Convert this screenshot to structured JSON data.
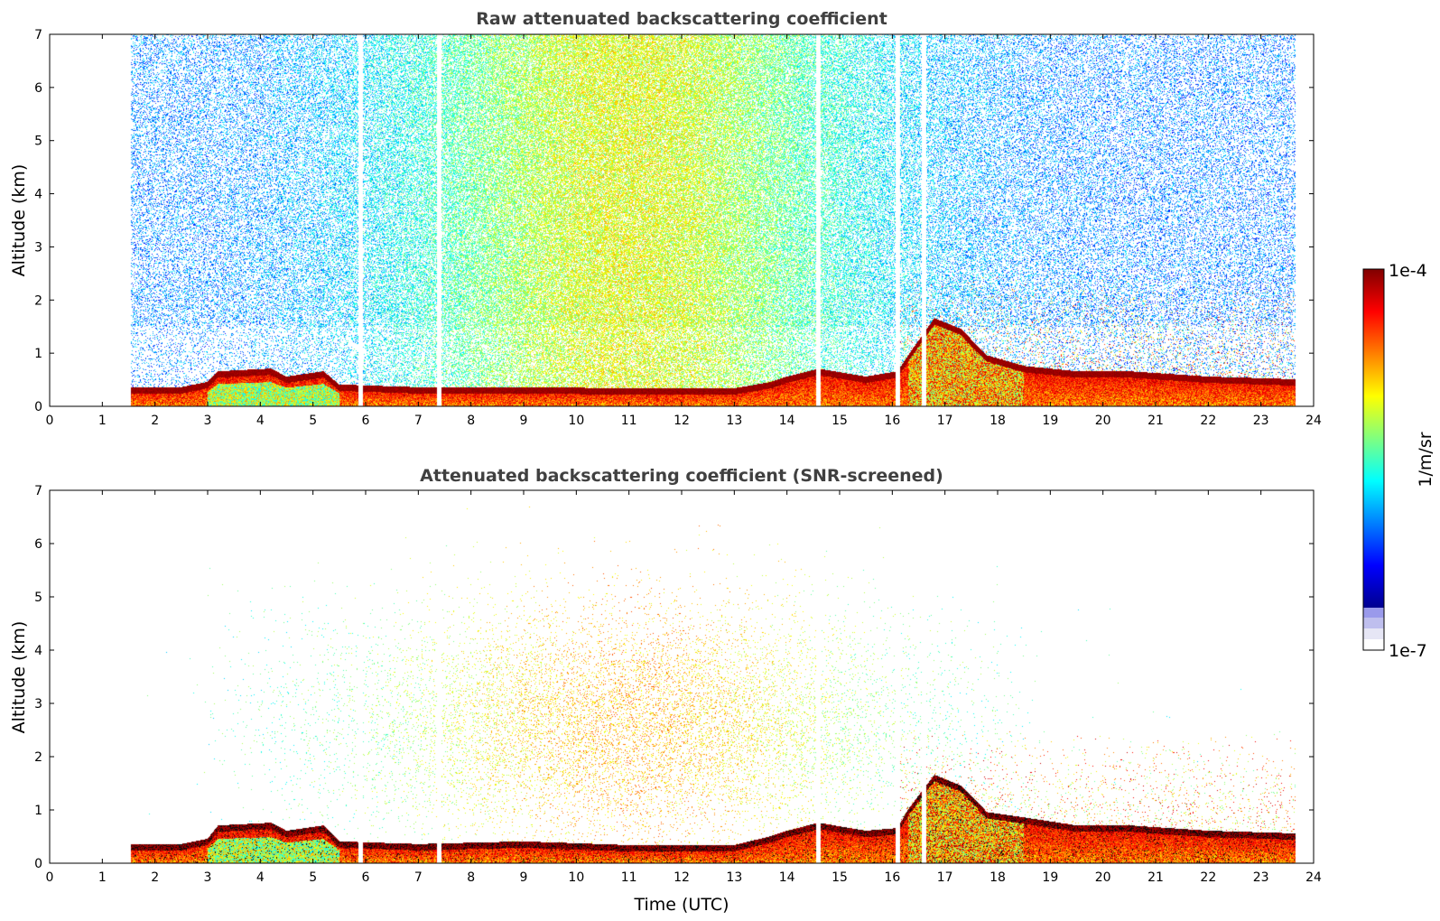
{
  "chart_data": [
    {
      "type": "heatmap",
      "title": "Raw attenuated backscattering coefficient",
      "xlabel": "",
      "ylabel": "Altitude (km)",
      "xlim": [
        0,
        24
      ],
      "ylim": [
        0,
        7
      ],
      "xticks": [
        "0",
        "1",
        "2",
        "3",
        "4",
        "5",
        "6",
        "7",
        "8",
        "9",
        "10",
        "11",
        "12",
        "13",
        "14",
        "15",
        "16",
        "17",
        "18",
        "19",
        "20",
        "21",
        "22",
        "23",
        "24"
      ],
      "yticks": [
        "0",
        "1",
        "2",
        "3",
        "4",
        "5",
        "6",
        "7"
      ],
      "data_start_hour": 1.55,
      "data_end_hour": 23.65,
      "gap_hours": [
        5.9,
        7.4,
        14.6,
        16.1,
        16.6
      ],
      "boundary_layer_top_km": [
        [
          1.55,
          0.3
        ],
        [
          2.5,
          0.3
        ],
        [
          3.0,
          0.4
        ],
        [
          3.2,
          0.6
        ],
        [
          4.2,
          0.65
        ],
        [
          4.5,
          0.5
        ],
        [
          5.2,
          0.6
        ],
        [
          5.5,
          0.35
        ],
        [
          7.0,
          0.3
        ],
        [
          9.0,
          0.3
        ],
        [
          11.0,
          0.28
        ],
        [
          13.0,
          0.28
        ],
        [
          13.7,
          0.4
        ],
        [
          14.0,
          0.5
        ],
        [
          14.6,
          0.65
        ],
        [
          15.5,
          0.5
        ],
        [
          16.1,
          0.6
        ],
        [
          16.3,
          0.9
        ],
        [
          16.8,
          1.6
        ],
        [
          17.3,
          1.4
        ],
        [
          17.8,
          0.9
        ],
        [
          18.5,
          0.7
        ],
        [
          19.5,
          0.6
        ],
        [
          20.5,
          0.6
        ],
        [
          22.0,
          0.5
        ],
        [
          23.65,
          0.45
        ]
      ]
    },
    {
      "type": "heatmap",
      "title": "Attenuated backscattering coefficient (SNR-screened)",
      "xlabel": "Time (UTC)",
      "ylabel": "Altitude (km)",
      "xlim": [
        0,
        24
      ],
      "ylim": [
        0,
        7
      ],
      "xticks": [
        "0",
        "1",
        "2",
        "3",
        "4",
        "5",
        "6",
        "7",
        "8",
        "9",
        "10",
        "11",
        "12",
        "13",
        "14",
        "15",
        "16",
        "17",
        "18",
        "19",
        "20",
        "21",
        "22",
        "23",
        "24"
      ],
      "yticks": [
        "0",
        "1",
        "2",
        "3",
        "4",
        "5",
        "6",
        "7"
      ],
      "data_start_hour": 1.55,
      "data_end_hour": 23.65,
      "gap_hours": [
        5.9,
        7.4,
        14.6,
        16.1,
        16.6
      ],
      "boundary_layer_top_km": [
        [
          1.55,
          0.3
        ],
        [
          2.5,
          0.3
        ],
        [
          3.0,
          0.4
        ],
        [
          3.2,
          0.65
        ],
        [
          4.2,
          0.7
        ],
        [
          4.5,
          0.55
        ],
        [
          5.2,
          0.65
        ],
        [
          5.5,
          0.35
        ],
        [
          7.0,
          0.3
        ],
        [
          9.0,
          0.35
        ],
        [
          11.0,
          0.28
        ],
        [
          13.0,
          0.28
        ],
        [
          13.7,
          0.45
        ],
        [
          14.0,
          0.55
        ],
        [
          14.6,
          0.7
        ],
        [
          15.5,
          0.55
        ],
        [
          16.1,
          0.6
        ],
        [
          16.3,
          0.95
        ],
        [
          16.8,
          1.6
        ],
        [
          17.3,
          1.4
        ],
        [
          17.8,
          0.9
        ],
        [
          18.5,
          0.8
        ],
        [
          19.5,
          0.65
        ],
        [
          20.5,
          0.65
        ],
        [
          22.0,
          0.55
        ],
        [
          23.65,
          0.5
        ]
      ]
    }
  ],
  "colorbar": {
    "label": "1/m/sr",
    "max_label": "1e-4",
    "min_label": "1e-7",
    "colormap": "jet",
    "low_colors": [
      "#e6e6f5",
      "#bfbfee",
      "#9a9aeb"
    ]
  }
}
